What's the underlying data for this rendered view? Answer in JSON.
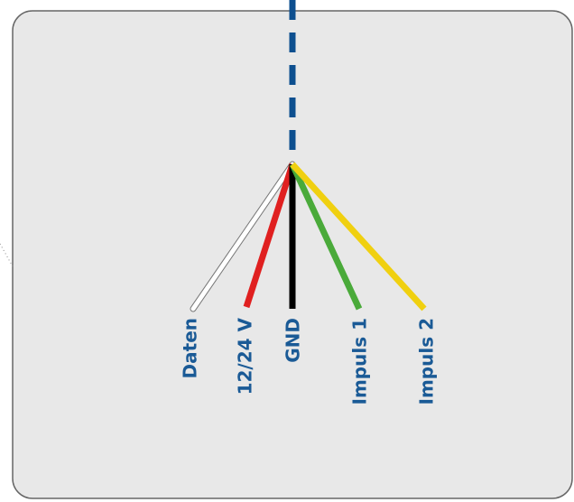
{
  "wires": [
    {
      "label": "Daten",
      "color": "#ffffff"
    },
    {
      "label": "12/24 V",
      "color": "#e02020"
    },
    {
      "label": "GND",
      "color": "#000000"
    },
    {
      "label": "Impuls 1",
      "color": "#4aaa3a"
    },
    {
      "label": "Impuls 2",
      "color": "#f0d010"
    }
  ]
}
